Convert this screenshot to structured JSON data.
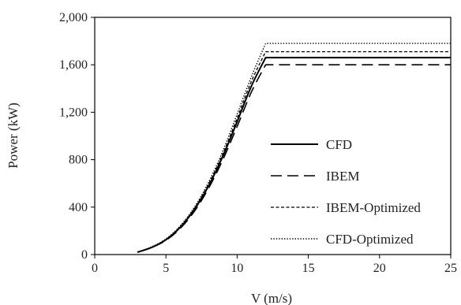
{
  "chart_data": {
    "type": "line",
    "title": "",
    "xlabel": "V (m/s)",
    "ylabel": "Power (kW)",
    "xlim": [
      0,
      25
    ],
    "ylim": [
      0,
      2000
    ],
    "xticks": [
      0,
      5,
      10,
      15,
      20,
      25
    ],
    "xtick_labels": [
      "0",
      "5",
      "10",
      "15",
      "20",
      "25"
    ],
    "yticks": [
      0,
      400,
      800,
      1200,
      1600,
      2000
    ],
    "ytick_labels": [
      "0",
      "400",
      "800",
      "1,200",
      "1,600",
      "2,000"
    ],
    "grid": false,
    "legend_position": "right",
    "series": [
      {
        "name": "CFD",
        "style": "solid",
        "color": "#000000",
        "x": [
          3,
          4,
          5,
          6,
          7,
          8,
          9,
          10,
          11,
          12,
          25
        ],
        "y": [
          20,
          60,
          125,
          230,
          380,
          580,
          830,
          1120,
          1420,
          1660,
          1660
        ]
      },
      {
        "name": "IBEM",
        "style": "dashed",
        "color": "#000000",
        "x": [
          3,
          4,
          5,
          6,
          7,
          8,
          9,
          10,
          11,
          12,
          25
        ],
        "y": [
          20,
          60,
          120,
          220,
          365,
          560,
          800,
          1080,
          1370,
          1600,
          1600
        ]
      },
      {
        "name": "IBEM-Optimized",
        "style": "shortdash",
        "color": "#000000",
        "x": [
          3,
          4,
          5,
          6,
          7,
          8,
          9,
          10,
          11,
          12,
          25
        ],
        "y": [
          20,
          62,
          128,
          235,
          390,
          595,
          850,
          1150,
          1460,
          1710,
          1710
        ]
      },
      {
        "name": "CFD-Optimized",
        "style": "dotted",
        "color": "#000000",
        "x": [
          3,
          4,
          5,
          6,
          7,
          8,
          9,
          10,
          11,
          12,
          25
        ],
        "y": [
          20,
          65,
          132,
          242,
          400,
          612,
          875,
          1185,
          1500,
          1780,
          1780
        ]
      }
    ]
  }
}
